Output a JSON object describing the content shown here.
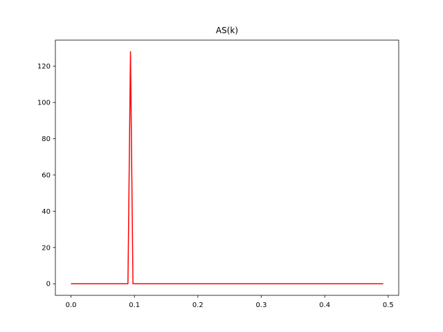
{
  "chart_data": {
    "type": "line",
    "title": "AS(k)",
    "xlabel": "",
    "ylabel": "",
    "xlim": [
      -0.0246,
      0.5166
    ],
    "ylim": [
      -6.4,
      134.4
    ],
    "xticks": [
      0.0,
      0.1,
      0.2,
      0.3,
      0.4,
      0.5
    ],
    "xtick_labels": [
      "0.0",
      "0.1",
      "0.2",
      "0.3",
      "0.4",
      "0.5"
    ],
    "yticks": [
      0,
      20,
      40,
      60,
      80,
      100,
      120
    ],
    "ytick_labels": [
      "0",
      "20",
      "40",
      "60",
      "80",
      "100",
      "120"
    ],
    "grid": false,
    "series": [
      {
        "color": "#ff0000",
        "x": [
          0.0,
          0.0898,
          0.0938,
          0.0977,
          0.4922
        ],
        "y": [
          0,
          0,
          128,
          0,
          0
        ]
      }
    ]
  }
}
